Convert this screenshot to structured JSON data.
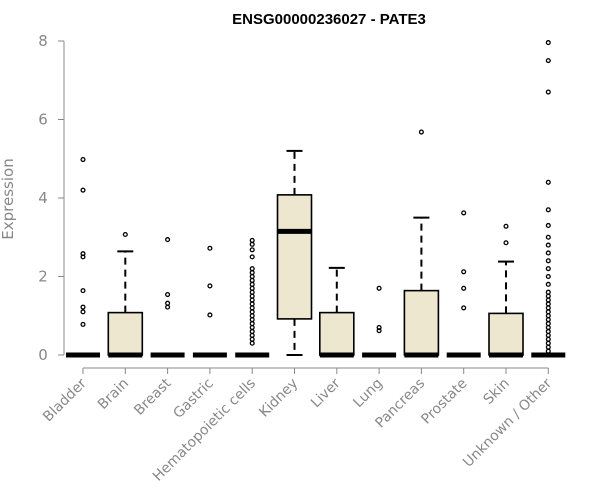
{
  "chart_data": {
    "type": "boxplot",
    "title": "ENSG00000236027 - PATE3",
    "ylabel": "Expression",
    "xlabel": "",
    "ylim": [
      0,
      8
    ],
    "yticks": [
      0,
      2,
      4,
      6,
      8
    ],
    "grid": false,
    "legend": "none",
    "box_fill": "#ede7cf",
    "categories": [
      "Bladder",
      "Brain",
      "Breast",
      "Gastric",
      "Hematopoietic cells",
      "Kidney",
      "Liver",
      "Lung",
      "Pancreas",
      "Prostate",
      "Skin",
      "Unknown / Other"
    ],
    "boxes": [
      {
        "category": "Bladder",
        "whisker_low": 0,
        "q1": 0,
        "median": 0,
        "q3": 0,
        "whisker_high": 0,
        "outliers": [
          0.78,
          1.1,
          1.22,
          1.64,
          2.5,
          2.58,
          4.2,
          4.98
        ]
      },
      {
        "category": "Brain",
        "whisker_low": 0,
        "q1": 0,
        "median": 0,
        "q3": 1.08,
        "whisker_high": 2.64,
        "outliers": [
          3.07
        ]
      },
      {
        "category": "Breast",
        "whisker_low": 0,
        "q1": 0,
        "median": 0,
        "q3": 0,
        "whisker_high": 0,
        "outliers": [
          1.22,
          1.32,
          1.54,
          2.94
        ]
      },
      {
        "category": "Gastric",
        "whisker_low": 0,
        "q1": 0,
        "median": 0,
        "q3": 0,
        "whisker_high": 0,
        "outliers": [
          1.02,
          1.76,
          2.72
        ]
      },
      {
        "category": "Hematopoietic cells",
        "whisker_low": 0,
        "q1": 0,
        "median": 0,
        "q3": 0,
        "whisker_high": 0,
        "outliers": [
          0.3,
          0.4,
          0.5,
          0.6,
          0.7,
          0.8,
          0.9,
          1.0,
          1.1,
          1.2,
          1.3,
          1.4,
          1.5,
          1.6,
          1.7,
          1.8,
          1.9,
          2.0,
          2.1,
          2.2,
          2.5,
          2.68,
          2.82,
          2.92
        ]
      },
      {
        "category": "Kidney",
        "whisker_low": 0,
        "q1": 0.92,
        "median": 3.15,
        "q3": 4.08,
        "whisker_high": 5.2,
        "outliers": []
      },
      {
        "category": "Liver",
        "whisker_low": 0,
        "q1": 0,
        "median": 0,
        "q3": 1.08,
        "whisker_high": 2.22,
        "outliers": []
      },
      {
        "category": "Lung",
        "whisker_low": 0,
        "q1": 0,
        "median": 0,
        "q3": 0,
        "whisker_high": 0,
        "outliers": [
          0.62,
          0.7,
          1.7
        ]
      },
      {
        "category": "Pancreas",
        "whisker_low": 0,
        "q1": 0,
        "median": 0,
        "q3": 1.64,
        "whisker_high": 3.5,
        "outliers": [
          5.68
        ]
      },
      {
        "category": "Prostate",
        "whisker_low": 0,
        "q1": 0,
        "median": 0,
        "q3": 0,
        "whisker_high": 0,
        "outliers": [
          1.2,
          1.7,
          2.12,
          3.62
        ]
      },
      {
        "category": "Skin",
        "whisker_low": 0,
        "q1": 0,
        "median": 0,
        "q3": 1.06,
        "whisker_high": 2.38,
        "outliers": [
          2.86,
          3.28
        ]
      },
      {
        "category": "Unknown / Other",
        "whisker_low": 0,
        "q1": 0,
        "median": 0,
        "q3": 0,
        "whisker_high": 0,
        "outliers": [
          0.1,
          0.2,
          0.3,
          0.4,
          0.5,
          0.6,
          0.7,
          0.8,
          0.9,
          1.0,
          1.1,
          1.2,
          1.3,
          1.4,
          1.5,
          1.6,
          1.8,
          2.0,
          2.2,
          2.4,
          2.6,
          2.8,
          3.0,
          3.3,
          3.7,
          4.4,
          6.7,
          7.5,
          7.96
        ]
      }
    ]
  }
}
